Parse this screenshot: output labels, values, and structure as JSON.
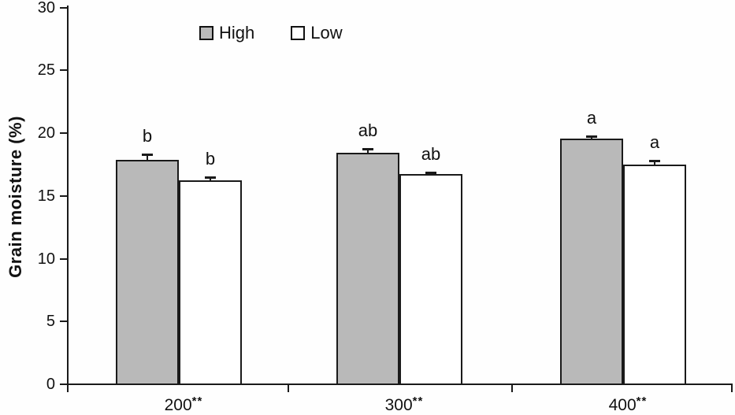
{
  "chart_data": {
    "type": "bar",
    "title": "",
    "ylabel": "Grain moisture (%)",
    "xlabel": "",
    "ylim": [
      0,
      30
    ],
    "yticks": [
      0,
      5,
      10,
      15,
      20,
      25,
      30
    ],
    "grid": false,
    "legend_position": "top-center",
    "categories": [
      "200",
      "300",
      "400"
    ],
    "category_suffix": "**",
    "series": [
      {
        "name": "High",
        "fill": "#b9b9b9",
        "values": [
          17.8,
          18.4,
          19.5
        ],
        "errors": [
          0.45,
          0.3,
          0.2
        ],
        "sig_letters": [
          "b",
          "ab",
          "a"
        ]
      },
      {
        "name": "Low",
        "fill": "#ffffff",
        "values": [
          16.2,
          16.7,
          17.4
        ],
        "errors": [
          0.25,
          0.1,
          0.35
        ],
        "sig_letters": [
          "b",
          "ab",
          "a"
        ]
      }
    ],
    "colors": {
      "bar_border": "#1a1a1a",
      "axis": "#1a1a1a",
      "text": "#111111"
    }
  }
}
